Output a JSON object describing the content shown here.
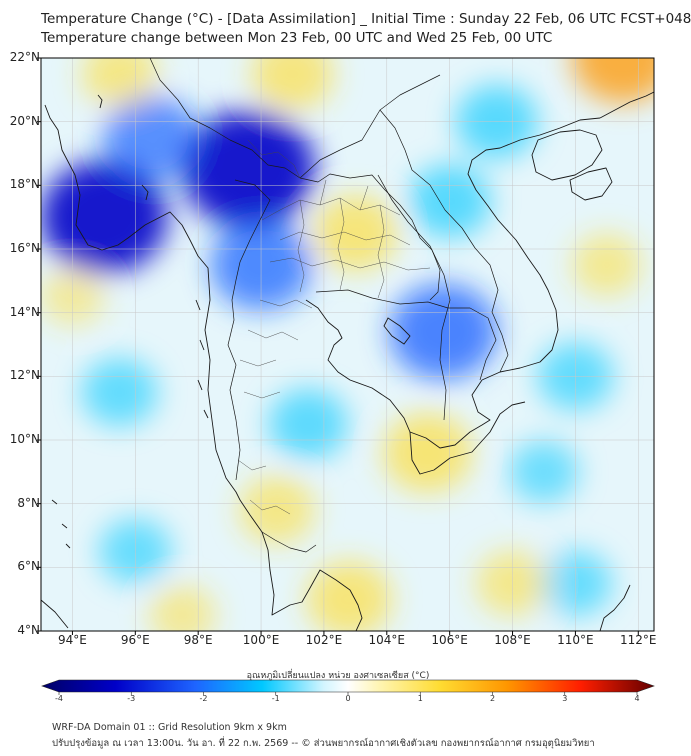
{
  "header": {
    "title_line1": "Temperature Change (°C) - [Data Assimilation] _ Initial Time : Sunday 22 Feb, 06 UTC FCST+048",
    "title_line2": "Temperature change between Mon 23 Feb, 00 UTC and Wed 25 Feb, 00 UTC"
  },
  "map": {
    "lat_labels": [
      "22°N",
      "20°N",
      "18°N",
      "16°N",
      "14°N",
      "12°N",
      "10°N",
      "8°N",
      "6°N",
      "4°N"
    ],
    "lon_labels": [
      "94°E",
      "96°E",
      "98°E",
      "100°E",
      "102°E",
      "104°E",
      "106°E",
      "108°E",
      "110°E",
      "112°E"
    ],
    "lat_range": [
      4,
      22
    ],
    "lon_range": [
      93,
      112.5
    ],
    "field_anomalies": [
      {
        "name": "cooling-myanmar-west",
        "lon": 95.0,
        "lat": 17.0,
        "value": -2.6
      },
      {
        "name": "cooling-northern-thailand",
        "lon": 99.6,
        "lat": 18.5,
        "value": -2.8
      },
      {
        "name": "cooling-andaman-coast",
        "lon": 96.5,
        "lat": 19.5,
        "value": -1.6
      },
      {
        "name": "cooling-chao-phraya",
        "lon": 100.0,
        "lat": 15.5,
        "value": -1.8
      },
      {
        "name": "cooling-cambodia",
        "lon": 105.8,
        "lat": 13.4,
        "value": -2.0
      },
      {
        "name": "cooling-laos-east",
        "lon": 106.0,
        "lat": 17.5,
        "value": -1.2
      },
      {
        "name": "cooling-hainan-gulf",
        "lon": 107.5,
        "lat": 20.0,
        "value": -1.2
      },
      {
        "name": "cooling-gulf-thailand",
        "lon": 101.5,
        "lat": 10.5,
        "value": -1.1
      },
      {
        "name": "cooling-andaman-sea",
        "lon": 95.5,
        "lat": 11.5,
        "value": -1.0
      },
      {
        "name": "cooling-south-china-sea",
        "lon": 110.0,
        "lat": 12.0,
        "value": -1.0
      },
      {
        "name": "cooling-east-sea",
        "lon": 109.0,
        "lat": 9.0,
        "value": -0.8
      },
      {
        "name": "cooling-south-west",
        "lon": 96.0,
        "lat": 6.5,
        "value": -0.9
      },
      {
        "name": "cooling-south-east",
        "lon": 110.0,
        "lat": 5.5,
        "value": -0.9
      },
      {
        "name": "warming-northeast-thailand",
        "lon": 103.0,
        "lat": 16.5,
        "value": 1.3
      },
      {
        "name": "warming-upper-north",
        "lon": 101.0,
        "lat": 21.5,
        "value": 1.2
      },
      {
        "name": "warming-far-northeast",
        "lon": 111.5,
        "lat": 22.0,
        "value": 1.8
      },
      {
        "name": "warming-north-myanmar",
        "lon": 95.5,
        "lat": 21.5,
        "value": 1.0
      },
      {
        "name": "warming-mekong-delta",
        "lon": 105.3,
        "lat": 9.6,
        "value": 1.4
      },
      {
        "name": "warming-malay-peninsula",
        "lon": 100.5,
        "lat": 7.8,
        "value": 1.0
      },
      {
        "name": "warming-south-sea",
        "lon": 102.8,
        "lat": 5.0,
        "value": 1.3
      },
      {
        "name": "warming-east-coast",
        "lon": 111.0,
        "lat": 15.5,
        "value": 0.8
      },
      {
        "name": "warming-west-sea",
        "lon": 94.0,
        "lat": 14.5,
        "value": 0.6
      },
      {
        "name": "warming-south-east-sea",
        "lon": 108.0,
        "lat": 5.5,
        "value": 0.9
      },
      {
        "name": "warming-deep-south",
        "lon": 97.5,
        "lat": 4.5,
        "value": 0.7
      }
    ]
  },
  "colorbar": {
    "title": "อุณหภูมิเปลี่ยนแปลง หน่วย องศาเซลเซียส (°C)",
    "range": [
      -4,
      4
    ],
    "tick_labels": [
      "-4",
      "-3",
      "-2",
      "-1",
      "0",
      "1",
      "2",
      "3",
      "4"
    ],
    "colors": {
      "cold_extreme": "#000066",
      "cold": "#0000c8",
      "blue": "#1e64ff",
      "cyan": "#00c8ff",
      "pale_cyan": "#d2f5ff",
      "neutral": "#ffffff",
      "pale_yellow": "#fff5b4",
      "yellow": "#ffdc32",
      "orange": "#ff9600",
      "red": "#ff1e00",
      "warm_extreme": "#640000"
    }
  },
  "footer": {
    "line1": "WRF-DA Domain 01 :: Grid Resolution 9km x 9km",
    "line2": "ปรับปรุงข้อมูล ณ เวลา 13:00น. วัน อา. ที่ 22 ก.พ. 2569 -- © ส่วนพยากรณ์อากาศเชิงตัวเลข กองพยากรณ์อากาศ กรมอุตุนิยมวิทยา"
  }
}
